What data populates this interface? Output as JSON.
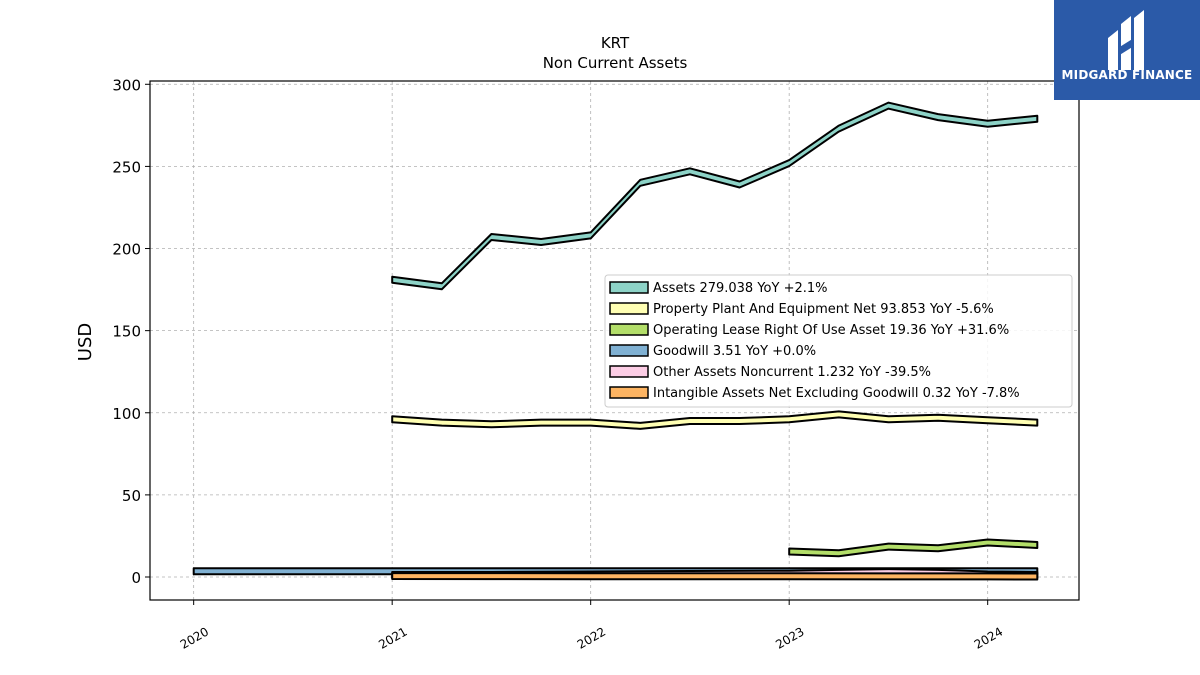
{
  "brand": {
    "name": "MIDGARD FINANCE",
    "bg_color": "#2b5aa8",
    "icon": "midgard-logo-icon"
  },
  "chart_data": {
    "type": "area",
    "title": "KRT",
    "subtitle": "Non Current  Assets",
    "xlabel": "",
    "ylabel": "USD",
    "xlim": [
      2019.78,
      2024.46
    ],
    "ylim": [
      -14,
      302
    ],
    "x_ticks": [
      2020,
      2021,
      2022,
      2023,
      2024
    ],
    "x_tick_labels": [
      "2020",
      "2021",
      "2022",
      "2023",
      "2024"
    ],
    "y_ticks": [
      0,
      50,
      100,
      150,
      200,
      250,
      300
    ],
    "y_tick_labels": [
      "0",
      "50",
      "100",
      "150",
      "200",
      "250",
      "300"
    ],
    "grid": true,
    "legend_position": "center-right",
    "series": [
      {
        "name": "Assets  279.038 YoY +2.1%",
        "color": "#8dd3c7",
        "points": [
          [
            2021.0,
            181
          ],
          [
            2021.25,
            177
          ],
          [
            2021.5,
            207
          ],
          [
            2021.75,
            204
          ],
          [
            2022.0,
            208
          ],
          [
            2022.25,
            240
          ],
          [
            2022.5,
            247
          ],
          [
            2022.75,
            239
          ],
          [
            2023.0,
            252
          ],
          [
            2023.25,
            273
          ],
          [
            2023.5,
            287
          ],
          [
            2023.75,
            280
          ],
          [
            2024.0,
            276
          ],
          [
            2024.25,
            279
          ]
        ]
      },
      {
        "name": "Property Plant And Equipment Net  93.853 YoY -5.6%",
        "color": "#ffffb3",
        "points": [
          [
            2021.0,
            96
          ],
          [
            2021.25,
            94
          ],
          [
            2021.5,
            93
          ],
          [
            2021.75,
            94
          ],
          [
            2022.0,
            94
          ],
          [
            2022.25,
            92
          ],
          [
            2022.5,
            95
          ],
          [
            2022.75,
            95
          ],
          [
            2023.0,
            96
          ],
          [
            2023.25,
            99
          ],
          [
            2023.5,
            96
          ],
          [
            2023.75,
            97
          ],
          [
            2024.0,
            95.5
          ],
          [
            2024.25,
            94
          ]
        ]
      },
      {
        "name": "Operating Lease Right Of Use Asset  19.36 YoY +31.6%",
        "color": "#b3de69",
        "points": [
          [
            2023.0,
            15.5
          ],
          [
            2023.25,
            14.5
          ],
          [
            2023.5,
            18.5
          ],
          [
            2023.75,
            17.5
          ],
          [
            2024.0,
            21
          ],
          [
            2024.25,
            19.5
          ]
        ]
      },
      {
        "name": "Goodwill  3.51 YoY +0.0%",
        "color": "#80b1d3",
        "points": [
          [
            2020.0,
            3.51
          ],
          [
            2021.0,
            3.51
          ],
          [
            2021.25,
            3.51
          ],
          [
            2021.5,
            3.51
          ],
          [
            2022.0,
            3.51
          ],
          [
            2022.5,
            3.51
          ],
          [
            2023.0,
            3.51
          ],
          [
            2023.5,
            3.51
          ],
          [
            2024.0,
            3.51
          ],
          [
            2024.25,
            3.51
          ]
        ]
      },
      {
        "name": "Other Assets Noncurrent  1.232 YoY -39.5%",
        "color": "#fccde5",
        "points": [
          [
            2021.0,
            1.2
          ],
          [
            2021.5,
            1.2
          ],
          [
            2022.0,
            1.5
          ],
          [
            2022.5,
            1.8
          ],
          [
            2023.0,
            2.0
          ],
          [
            2023.25,
            2.5
          ],
          [
            2023.5,
            3.0
          ],
          [
            2023.75,
            2.5
          ],
          [
            2024.0,
            1.5
          ],
          [
            2024.25,
            1.232
          ]
        ]
      },
      {
        "name": "Intangible Assets Net Excluding Goodwill  0.32 YoY -7.8%",
        "color": "#fdb462",
        "points": [
          [
            2021.0,
            0.6
          ],
          [
            2021.5,
            0.55
          ],
          [
            2022.0,
            0.5
          ],
          [
            2022.5,
            0.45
          ],
          [
            2023.0,
            0.4
          ],
          [
            2023.5,
            0.37
          ],
          [
            2024.0,
            0.35
          ],
          [
            2024.25,
            0.32
          ]
        ]
      }
    ]
  }
}
